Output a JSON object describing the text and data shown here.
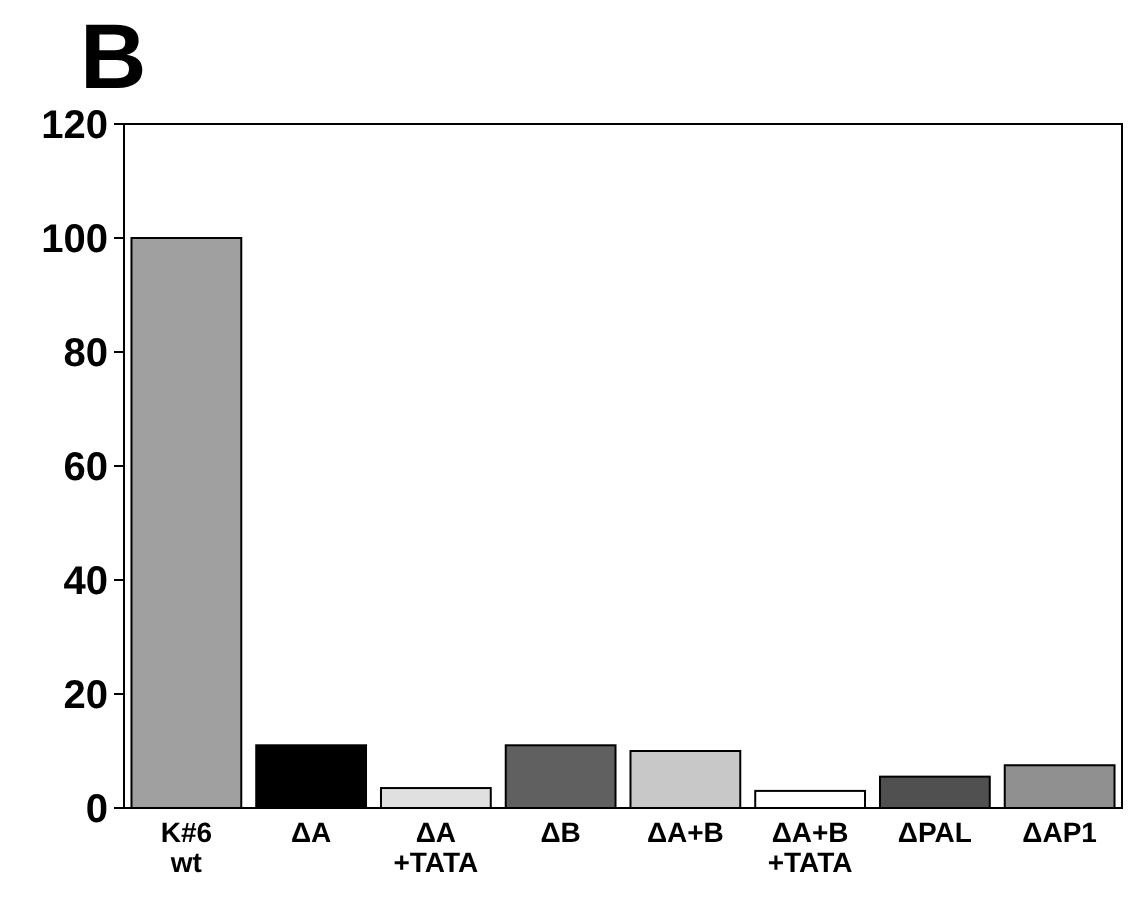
{
  "chart_data": {
    "type": "bar",
    "title": "B",
    "categories": [
      "K#6\nwt",
      "ΔA",
      "ΔA\n+TATA",
      "ΔB",
      "ΔA+B",
      "ΔA+B\n+TATA",
      "ΔPAL",
      "ΔAP1"
    ],
    "values": [
      100,
      11,
      3.5,
      11,
      10,
      3,
      5.5,
      7.5
    ],
    "colors": [
      "#a0a0a0",
      "#000000",
      "#e0e0e0",
      "#606060",
      "#c8c8c8",
      "#ffffff",
      "#505050",
      "#909090"
    ],
    "ylim": [
      0,
      120
    ],
    "yticks": [
      0,
      20,
      40,
      60,
      80,
      100,
      120
    ],
    "grid": false
  }
}
